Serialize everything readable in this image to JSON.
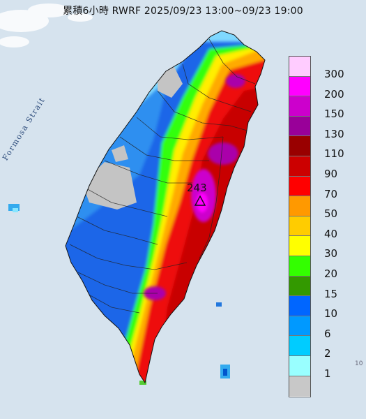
{
  "title": "累積6小時 RWRF 2025/09/23 13:00~09/23 19:00",
  "strait_label": "Formosa Strait",
  "peak": {
    "value": "243",
    "marker": "triangle"
  },
  "legend": {
    "labels": [
      "300",
      "200",
      "150",
      "130",
      "110",
      "90",
      "70",
      "50",
      "40",
      "30",
      "20",
      "15",
      "10",
      "6",
      "2",
      "1"
    ],
    "colors": [
      "#ffccff",
      "#ff00ff",
      "#cc00cc",
      "#990099",
      "#990000",
      "#cc0000",
      "#ff0000",
      "#ff9900",
      "#ffcc00",
      "#ffff00",
      "#33ff00",
      "#339900",
      "#0066ff",
      "#0099ff",
      "#00ccff",
      "#99ffff",
      "#c8c8c8"
    ]
  },
  "corner_text": "10"
}
